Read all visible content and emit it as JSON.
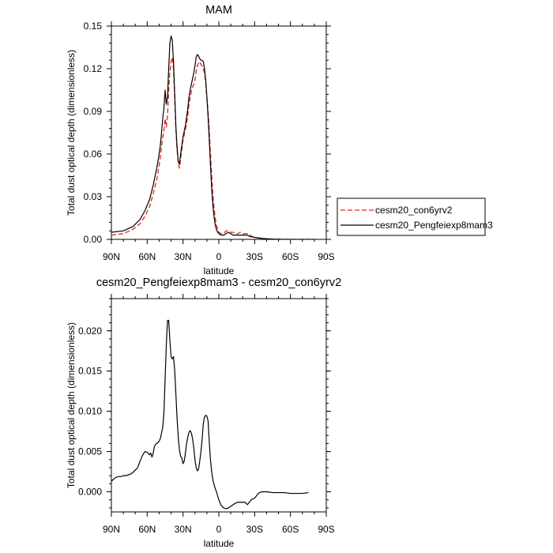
{
  "chart_data": [
    {
      "type": "line",
      "title": "MAM",
      "xlabel": "latitude",
      "ylabel": "Total dust optical depth (dimensionless)",
      "x_direction": "north-to-south",
      "xlim": [
        90,
        -90
      ],
      "ylim": [
        0,
        0.15
      ],
      "xticks": [
        {
          "value": 90,
          "label": "90N"
        },
        {
          "value": 60,
          "label": "60N"
        },
        {
          "value": 30,
          "label": "30N"
        },
        {
          "value": 0,
          "label": "0"
        },
        {
          "value": -30,
          "label": "30S"
        },
        {
          "value": -60,
          "label": "60S"
        },
        {
          "value": -90,
          "label": "90S"
        }
      ],
      "yticks": [
        {
          "value": 0,
          "label": "0.00"
        },
        {
          "value": 0.03,
          "label": "0.03"
        },
        {
          "value": 0.06,
          "label": "0.06"
        },
        {
          "value": 0.09,
          "label": "0.09"
        },
        {
          "value": 0.12,
          "label": "0.12"
        },
        {
          "value": 0.15,
          "label": "0.15"
        }
      ],
      "legend_position": "right",
      "series": [
        {
          "name": "cesm20_con6yrv2",
          "color": "#e8211c",
          "dash": "dashed",
          "x": [
            90,
            80,
            72,
            66,
            62,
            58,
            55,
            52,
            50,
            49,
            48,
            47,
            46,
            45,
            44,
            43,
            42,
            41,
            40,
            39,
            38,
            37,
            36,
            35,
            34,
            33,
            32,
            31,
            30,
            28,
            26,
            25,
            24,
            23,
            22,
            21,
            20,
            19,
            18,
            17,
            16,
            15,
            14,
            13,
            12,
            11,
            10,
            9,
            8,
            7,
            6,
            5,
            4,
            3,
            2,
            1,
            0,
            -2,
            -4,
            -6,
            -8,
            -10,
            -12,
            -14,
            -16,
            -18,
            -20,
            -22,
            -24,
            -26,
            -28,
            -32,
            -36,
            -40,
            -45,
            -50,
            -60,
            -70,
            -75,
            -80
          ],
          "y": [
            0.003,
            0.004,
            0.007,
            0.011,
            0.016,
            0.023,
            0.032,
            0.042,
            0.052,
            0.058,
            0.065,
            0.072,
            0.076,
            0.085,
            0.079,
            0.087,
            0.105,
            0.118,
            0.125,
            0.128,
            0.12,
            0.1,
            0.078,
            0.063,
            0.054,
            0.05,
            0.057,
            0.063,
            0.07,
            0.077,
            0.087,
            0.095,
            0.1,
            0.104,
            0.107,
            0.109,
            0.112,
            0.118,
            0.122,
            0.124,
            0.125,
            0.123,
            0.122,
            0.12,
            0.117,
            0.11,
            0.1,
            0.09,
            0.077,
            0.06,
            0.045,
            0.032,
            0.022,
            0.015,
            0.01,
            0.007,
            0.005,
            0.004,
            0.004,
            0.006,
            0.006,
            0.005,
            0.005,
            0.004,
            0.004,
            0.005,
            0.004,
            0.004,
            0.004,
            0.003,
            0.002,
            0.0012,
            0.0007,
            0.0004,
            0.0002,
            0.0001,
            0.0,
            0.0,
            0.0,
            0.0
          ]
        },
        {
          "name": "cesm20_Pengfeiexp8mam3",
          "color": "#000000",
          "dash": "solid",
          "x": [
            90,
            80,
            72,
            66,
            62,
            58,
            55,
            52,
            50,
            49,
            48,
            47,
            46,
            45,
            44,
            43,
            42,
            41,
            40,
            39,
            38,
            37,
            36,
            35,
            34,
            33,
            32,
            31,
            30,
            28,
            26,
            25,
            24,
            23,
            22,
            21,
            20,
            19,
            18,
            17,
            16,
            15,
            14,
            13,
            12,
            11,
            10,
            9,
            8,
            7,
            6,
            5,
            4,
            3,
            2,
            1,
            0,
            -2,
            -4,
            -6,
            -8,
            -10,
            -12,
            -14,
            -16,
            -18,
            -20,
            -22,
            -24,
            -26,
            -28,
            -32,
            -36,
            -40,
            -45,
            -50,
            -60,
            -70,
            -75,
            -80
          ],
          "y": [
            0.005,
            0.006,
            0.009,
            0.014,
            0.02,
            0.028,
            0.038,
            0.05,
            0.06,
            0.066,
            0.075,
            0.085,
            0.092,
            0.105,
            0.095,
            0.1,
            0.12,
            0.138,
            0.143,
            0.14,
            0.125,
            0.103,
            0.08,
            0.065,
            0.055,
            0.053,
            0.06,
            0.066,
            0.072,
            0.08,
            0.092,
            0.1,
            0.105,
            0.109,
            0.113,
            0.117,
            0.122,
            0.128,
            0.13,
            0.129,
            0.127,
            0.126,
            0.126,
            0.125,
            0.12,
            0.112,
            0.1,
            0.086,
            0.07,
            0.052,
            0.036,
            0.024,
            0.016,
            0.01,
            0.007,
            0.005,
            0.004,
            0.003,
            0.003,
            0.004,
            0.005,
            0.004,
            0.003,
            0.003,
            0.003,
            0.003,
            0.003,
            0.003,
            0.003,
            0.002,
            0.0017,
            0.0011,
            0.0007,
            0.0004,
            0.0002,
            0.0001,
            0.0,
            0.0,
            0.0,
            0.0
          ]
        }
      ]
    },
    {
      "type": "line",
      "title": "cesm20_Pengfeiexp8mam3 - cesm20_con6yrv2",
      "xlabel": "latitude",
      "ylabel": "Total dust optical depth (dimensionless)",
      "x_direction": "north-to-south",
      "xlim": [
        90,
        -90
      ],
      "ylim": [
        -0.0025,
        0.024
      ],
      "xticks": [
        {
          "value": 90,
          "label": "90N"
        },
        {
          "value": 60,
          "label": "60N"
        },
        {
          "value": 30,
          "label": "30N"
        },
        {
          "value": 0,
          "label": "0"
        },
        {
          "value": -30,
          "label": "30S"
        },
        {
          "value": -60,
          "label": "60S"
        },
        {
          "value": -90,
          "label": "90S"
        }
      ],
      "yticks": [
        {
          "value": 0,
          "label": "0.000"
        },
        {
          "value": 0.005,
          "label": "0.005"
        },
        {
          "value": 0.01,
          "label": "0.010"
        },
        {
          "value": 0.015,
          "label": "0.015"
        },
        {
          "value": 0.02,
          "label": "0.020"
        }
      ],
      "series": [
        {
          "name": "difference",
          "color": "#000000",
          "dash": "solid",
          "x": [
            90,
            88,
            86,
            84,
            82,
            80,
            78,
            76,
            74,
            72,
            70,
            68,
            66,
            64,
            62,
            60,
            58,
            57,
            56,
            55,
            54,
            53,
            52,
            51,
            50,
            49,
            48,
            47,
            46,
            45,
            44,
            43,
            42,
            41,
            40,
            39,
            38,
            37,
            36,
            35,
            34,
            33,
            32,
            31,
            30,
            29,
            28,
            27,
            26,
            25,
            24,
            23,
            22,
            21,
            20,
            19,
            18,
            17,
            16,
            15,
            14,
            13,
            12,
            11,
            10,
            9,
            8,
            7,
            6,
            5,
            4,
            3,
            2,
            1,
            0,
            -2,
            -4,
            -6,
            -8,
            -10,
            -12,
            -14,
            -16,
            -18,
            -20,
            -22,
            -24,
            -26,
            -28,
            -30,
            -32,
            -34,
            -36,
            -40,
            -45,
            -50,
            -55,
            -60,
            -65,
            -70,
            -75
          ],
          "y": [
            0.0013,
            0.0016,
            0.0018,
            0.0019,
            0.0019,
            0.002,
            0.002,
            0.0021,
            0.0022,
            0.0024,
            0.0027,
            0.003,
            0.0038,
            0.0045,
            0.005,
            0.0049,
            0.0046,
            0.0048,
            0.0043,
            0.0048,
            0.0056,
            0.0059,
            0.006,
            0.0061,
            0.0063,
            0.0066,
            0.0073,
            0.008,
            0.0098,
            0.014,
            0.0182,
            0.0213,
            0.0213,
            0.0188,
            0.0168,
            0.0165,
            0.0168,
            0.0152,
            0.0122,
            0.0092,
            0.0068,
            0.0052,
            0.0044,
            0.0042,
            0.0035,
            0.0038,
            0.0048,
            0.006,
            0.0068,
            0.0074,
            0.0076,
            0.0073,
            0.0066,
            0.0055,
            0.004,
            0.003,
            0.0026,
            0.0028,
            0.0038,
            0.005,
            0.0065,
            0.0085,
            0.0093,
            0.0095,
            0.0094,
            0.0088,
            0.0062,
            0.004,
            0.0025,
            0.0015,
            0.0009,
            0.0004,
            0.0,
            -0.0005,
            -0.001,
            -0.0017,
            -0.002,
            -0.0021,
            -0.002,
            -0.0018,
            -0.0016,
            -0.0014,
            -0.0013,
            -0.0013,
            -0.0013,
            -0.0013,
            -0.0016,
            -0.0012,
            -0.0009,
            -0.0008,
            -0.0004,
            -0.0001,
            0.0,
            0.0,
            -0.0001,
            -0.0001,
            -0.0001,
            -0.0002,
            -0.0002,
            -0.0002,
            -0.0001
          ]
        }
      ]
    }
  ]
}
